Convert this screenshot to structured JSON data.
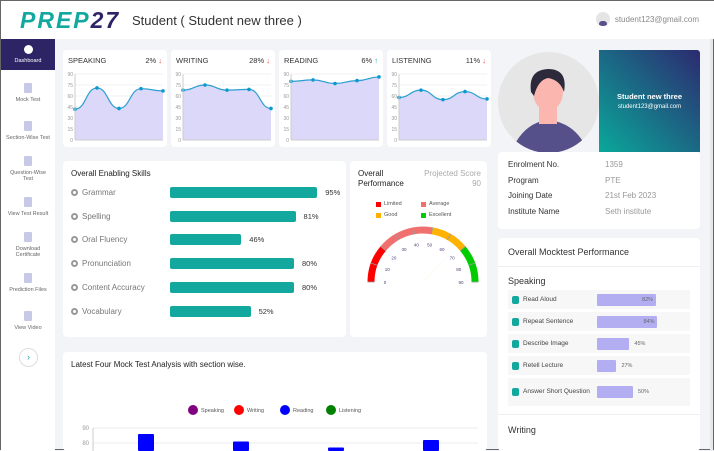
{
  "header": {
    "logo": "PREP27",
    "title": "Student ( Student new three )",
    "user_email": "student123@gmail.com"
  },
  "sidebar": {
    "items": [
      "Dashboard",
      "Mock Test",
      "Section-Wise Test",
      "Question-Wise Test",
      "View Test Result",
      "Download Certificate",
      "Prediction Files",
      "View Video"
    ],
    "expand": "›"
  },
  "sections": [
    {
      "name": "SPEAKING",
      "change": "2%",
      "dir": "down",
      "arrow": "↓",
      "values": [
        42,
        71,
        43,
        70,
        67
      ]
    },
    {
      "name": "WRITING",
      "change": "28%",
      "dir": "down",
      "arrow": "↓",
      "values": [
        68,
        75,
        68,
        69,
        43
      ]
    },
    {
      "name": "READING",
      "change": "6%",
      "dir": "up",
      "arrow": "↑",
      "values": [
        80,
        82,
        77,
        81,
        86
      ]
    },
    {
      "name": "LISTENING",
      "change": "11%",
      "dir": "down",
      "arrow": "↓",
      "values": [
        58,
        68,
        55,
        66,
        56
      ]
    }
  ],
  "mini_axis": [
    "90",
    "75",
    "60",
    "45",
    "30",
    "15",
    "0"
  ],
  "skills": {
    "title": "Overall Enabling Skills",
    "items": [
      {
        "label": "Grammar",
        "value": 95,
        "pct": "95%"
      },
      {
        "label": "Spelling",
        "value": 81,
        "pct": "81%"
      },
      {
        "label": "Oral Fluency",
        "value": 46,
        "pct": "46%"
      },
      {
        "label": "Pronunciation",
        "value": 80,
        "pct": "80%"
      },
      {
        "label": "Content Accuracy",
        "value": 80,
        "pct": "80%"
      },
      {
        "label": "Vocabulary",
        "value": 52,
        "pct": "52%"
      }
    ]
  },
  "performance": {
    "title": "Overall Performance",
    "projected": "Projected Score 90",
    "needle_value": 67,
    "legend": [
      {
        "label": "Limited",
        "color": "#ff0000"
      },
      {
        "label": "Average",
        "color": "#f07070"
      },
      {
        "label": "Good",
        "color": "#ffb300"
      },
      {
        "label": "Excellent",
        "color": "#00cc00"
      }
    ],
    "ticks": [
      "0",
      "10",
      "20",
      "30",
      "40",
      "50",
      "60",
      "70",
      "80",
      "90"
    ]
  },
  "profile": {
    "name": "Student new three",
    "email": "student123@gmail.com",
    "info": [
      {
        "k": "Enrolment No.",
        "v": "1359"
      },
      {
        "k": "Program",
        "v": "PTE"
      },
      {
        "k": "Joining Date",
        "v": "21st Feb 2023"
      },
      {
        "k": "Institute Name",
        "v": "Seth institute"
      }
    ]
  },
  "mock": {
    "title": "Overall Mocktest Performance",
    "section": "Speaking",
    "section2": "Writing",
    "items": [
      {
        "label": "Read Aloud",
        "value": 82,
        "pct": "82%"
      },
      {
        "label": "Repeat Sentence",
        "value": 84,
        "pct": "84%"
      },
      {
        "label": "Describe Image",
        "value": 45,
        "pct": "45%"
      },
      {
        "label": "Retell Lecture",
        "value": 27,
        "pct": "27%"
      },
      {
        "label": "Answer Short Question",
        "value": 50,
        "pct": "50%"
      }
    ]
  },
  "chart_data": {
    "type": "bar",
    "title": "Latest Four Mock Test Analysis with section wise.",
    "legend": [
      {
        "name": "Speaking",
        "color": "#800080"
      },
      {
        "name": "Writing",
        "color": "#ff0000"
      },
      {
        "name": "Reading",
        "color": "#0000ff"
      },
      {
        "name": "Listening",
        "color": "#008000"
      }
    ],
    "series": [
      {
        "name": "Reading",
        "values": [
          86,
          81,
          77,
          82
        ]
      }
    ],
    "yticks": [
      "90",
      "80"
    ],
    "ylim": [
      0,
      90
    ]
  }
}
